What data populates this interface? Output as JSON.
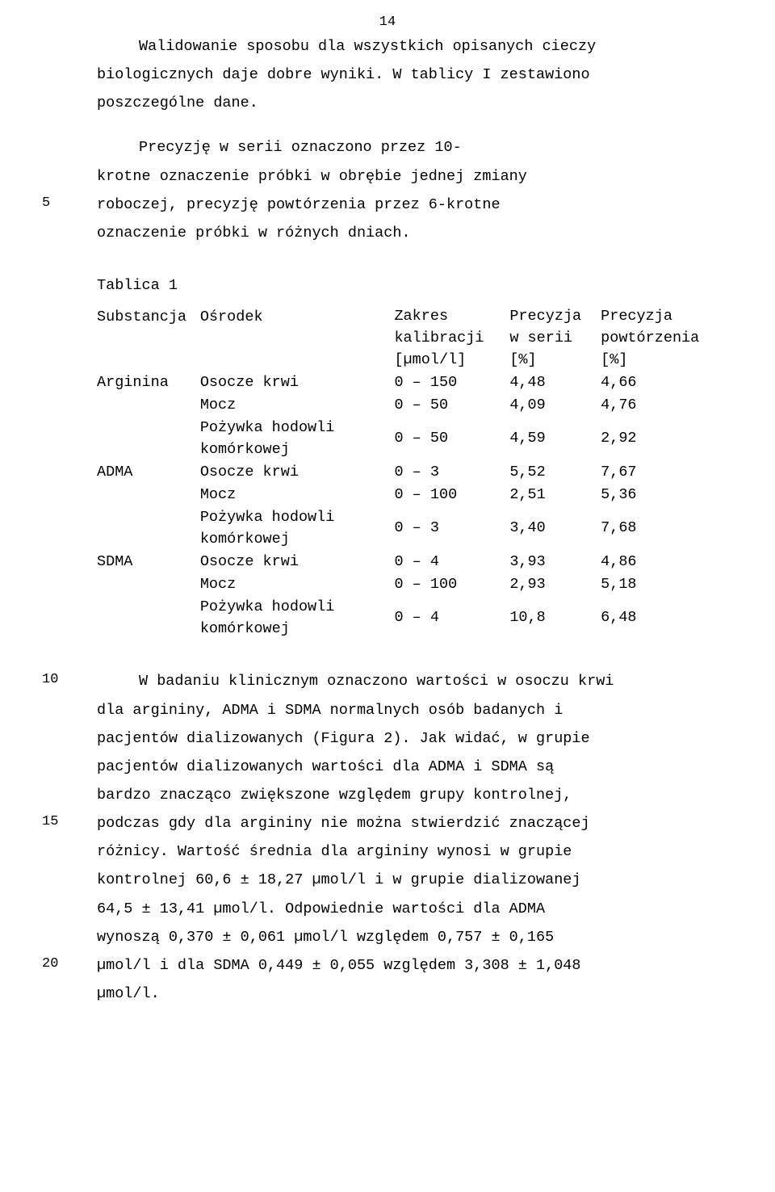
{
  "pageNumber": "14",
  "para1_l1": "Walidowanie sposobu dla wszystkich opisanych cieczy",
  "para1_l2": "biologicznych daje dobre wyniki. W tablicy I zestawiono",
  "para1_l3": "poszczególne dane.",
  "para2_l1": "Precyzję w serii oznaczono przez 10-",
  "para2_l2": "krotne oznaczenie próbki w obrębie jednej zmiany",
  "para2_l3": "roboczej, precyzję powtórzenia przez 6-krotne",
  "para2_l4": "oznaczenie próbki w różnych dniach.",
  "marginNumbers": {
    "m5": "5",
    "m10": "10",
    "m15": "15",
    "m20": "20"
  },
  "table": {
    "title": "Tablica 1",
    "headers": {
      "substancja": "Substancja",
      "osrodek": "Ośrodek",
      "zakres_l1": "Zakres",
      "zakres_l2": "kalibracji",
      "zakres_l3": "[µmol/l]",
      "prec_serii_l1": "Precyzja",
      "prec_serii_l2": "w serii",
      "prec_serii_l3": "[%]",
      "prec_powt_l1": "Precyzja",
      "prec_powt_l2": "powtórzenia",
      "prec_powt_l3": "[%]"
    },
    "medium": {
      "osocze": "Osocze krwi",
      "mocz": "Mocz",
      "pozywka_l1": "Pożywka  hodowli",
      "pozywka_l2": "komórkowej"
    },
    "substances": {
      "arg": "Arginina",
      "adma": "ADMA",
      "sdma": "SDMA"
    },
    "rows": [
      {
        "sub": "arg",
        "med": "osocze",
        "range": "0 – 150",
        "ps": "4,48",
        "pp": "4,66"
      },
      {
        "sub": "",
        "med": "mocz",
        "range": "0 – 50",
        "ps": "4,09",
        "pp": "4,76"
      },
      {
        "sub": "",
        "med": "pozywka",
        "range": "0 – 50",
        "ps": "4,59",
        "pp": "2,92"
      },
      {
        "sub": "adma",
        "med": "osocze",
        "range": "0 – 3",
        "ps": "5,52",
        "pp": "7,67"
      },
      {
        "sub": "",
        "med": "mocz",
        "range": "0 – 100",
        "ps": "2,51",
        "pp": "5,36"
      },
      {
        "sub": "",
        "med": "pozywka",
        "range": "0 – 3",
        "ps": "3,40",
        "pp": "7,68"
      },
      {
        "sub": "sdma",
        "med": "osocze",
        "range": "0 – 4",
        "ps": "3,93",
        "pp": "4,86"
      },
      {
        "sub": "",
        "med": "mocz",
        "range": "0 – 100",
        "ps": "2,93",
        "pp": "5,18"
      },
      {
        "sub": "",
        "med": "pozywka",
        "range": "0 – 4",
        "ps": "10,8",
        "pp": "6,48"
      }
    ]
  },
  "para3_l1": "W badaniu klinicznym oznaczono wartości w osoczu krwi",
  "para3_l2": "dla argininy, ADMA i SDMA normalnych osób badanych i",
  "para3_l3": "pacjentów dializowanych (Figura 2). Jak widać, w grupie",
  "para3_l4": "pacjentów dializowanych wartości dla ADMA i SDMA są",
  "para3_l5": "bardzo znacząco zwiększone względem grupy kontrolnej,",
  "para3_l6": "podczas gdy dla argininy nie można stwierdzić znaczącej",
  "para3_l7": "różnicy. Wartość średnia dla argininy wynosi w grupie",
  "para3_l8": "kontrolnej 60,6 ± 18,27 µmol/l i w grupie dializowanej",
  "para3_l9": "64,5 ± 13,41 µmol/l. Odpowiednie wartości dla ADMA",
  "para3_l10": "wynoszą 0,370 ± 0,061 µmol/l względem 0,757 ± 0,165",
  "para3_l11": "µmol/l i dla SDMA 0,449 ± 0,055 względem 3,308 ± 1,048",
  "para3_l12": "µmol/l."
}
